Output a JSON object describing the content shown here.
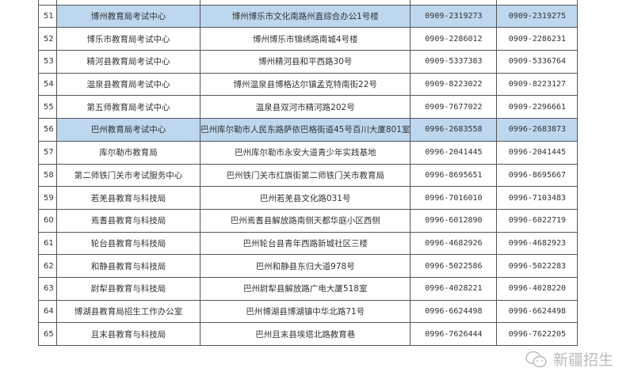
{
  "rows": [
    {
      "no": "51",
      "name": "博州教育局考试中心",
      "address": "博州博乐市文化南路州直综合办公1号楼",
      "phone1": "0909-2319273",
      "phone2": "0909-2319275",
      "highlight": true
    },
    {
      "no": "52",
      "name": "博乐市教育局考试中心",
      "address": "博州博乐市锦绣路南城4号楼",
      "phone1": "0909-2286012",
      "phone2": "0909-2286231",
      "highlight": false
    },
    {
      "no": "53",
      "name": "精河县教育局考试中心",
      "address": "博州精河县和平西路30号",
      "phone1": "0909-5337383",
      "phone2": "0909-5336764",
      "highlight": false
    },
    {
      "no": "54",
      "name": "温泉县教育局考试中心",
      "address": "博州温泉县博格达尔镇孟克特南街22号",
      "phone1": "0909-8223022",
      "phone2": "0909-8223127",
      "highlight": false
    },
    {
      "no": "55",
      "name": "第五师教育局考试中心",
      "address": "温泉县双河市精河路202号",
      "phone1": "0909-7677022",
      "phone2": "0909-2296661",
      "highlight": false
    },
    {
      "no": "56",
      "name": "巴州教育局考试中心",
      "address": "巴州库尔勒市人民东路萨依巴格街道45号百川大厦801室",
      "phone1": "0996-2683558",
      "phone2": "0996-2683873",
      "highlight": true
    },
    {
      "no": "57",
      "name": "库尔勒市教育局",
      "address": "巴州库尔勒市永安大道青少年实践基地",
      "phone1": "0996-2041445",
      "phone2": "0996-2041445",
      "highlight": false
    },
    {
      "no": "58",
      "name": "第二师铁门关市考试服务中心",
      "address": "巴州铁门关市红旗街第二师铁门关市教育局",
      "phone1": "0996-8695651",
      "phone2": "0996-8695667",
      "highlight": false
    },
    {
      "no": "59",
      "name": "若羌县教育与科技局",
      "address": "巴州若羌县文化路031号",
      "phone1": "0996-7016010",
      "phone2": "0996-7103483",
      "highlight": false
    },
    {
      "no": "60",
      "name": "焉耆县教育与科技局",
      "address": "巴州焉耆县解放路南侧天都华庭小区西侧",
      "phone1": "0996-6012890",
      "phone2": "0996-6022719",
      "highlight": false
    },
    {
      "no": "61",
      "name": "轮台县教育与科技局",
      "address": "巴州轮台县青年西路新城社区三楼",
      "phone1": "0996-4682926",
      "phone2": "0996-4682923",
      "highlight": false
    },
    {
      "no": "62",
      "name": "和静县教育与科技局",
      "address": "巴州和静县东归大道978号",
      "phone1": "0996-5022586",
      "phone2": "0996-5022283",
      "highlight": false
    },
    {
      "no": "63",
      "name": "尉犁县教育与科技局",
      "address": "巴州尉犁县解放路广电大厦518室",
      "phone1": "0996-4028221",
      "phone2": "0996-4028220",
      "highlight": false
    },
    {
      "no": "64",
      "name": "博湖县教育局招生工作办公室",
      "address": "巴州博湖县博湖镇中华北路71号",
      "phone1": "0996-6624498",
      "phone2": "0996-6624498",
      "highlight": false
    },
    {
      "no": "65",
      "name": "且末县教育与科技局",
      "address": "巴州且末县埃塔北路教育巷",
      "phone1": "0996-7626444",
      "phone2": "0996-7622205",
      "highlight": false
    }
  ],
  "watermark": {
    "text": "新疆招生",
    "icon": "wechat-icon"
  },
  "colors": {
    "highlight": "#bdd7ee",
    "border": "#555555"
  }
}
